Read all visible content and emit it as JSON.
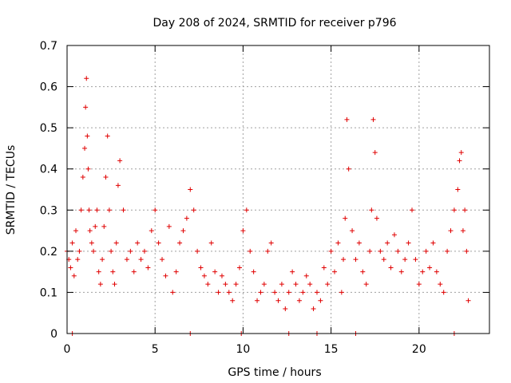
{
  "chart_data": {
    "type": "scatter",
    "title": "Day 208 of 2024, SRMTID for receiver p796",
    "xlabel": "GPS time / hours",
    "ylabel": "SRMTID / TECUs",
    "xlim": [
      0,
      24
    ],
    "ylim": [
      0,
      0.7
    ],
    "x_ticks": [
      0,
      5,
      10,
      15,
      20
    ],
    "x_tick_labels": [
      "0",
      "5",
      "10",
      "15",
      "20"
    ],
    "y_ticks": [
      0,
      0.1,
      0.2,
      0.3,
      0.4,
      0.5,
      0.6,
      0.7
    ],
    "y_tick_labels": [
      "0",
      "0.1",
      "0.2",
      "0.3",
      "0.4",
      "0.5",
      "0.6",
      "0.7"
    ],
    "grid": true,
    "marker": "plus",
    "series": [
      {
        "name": "SRMTID",
        "color": "#e00000",
        "x": [
          0.0,
          0.1,
          0.2,
          0.3,
          0.4,
          0.5,
          0.6,
          0.7,
          0.8,
          0.9,
          1.0,
          1.05,
          1.1,
          1.15,
          1.2,
          1.25,
          1.3,
          1.4,
          1.5,
          1.6,
          1.7,
          1.8,
          1.9,
          2.0,
          2.1,
          2.2,
          2.3,
          2.4,
          2.5,
          2.6,
          2.7,
          2.8,
          2.9,
          3.0,
          3.2,
          3.4,
          3.6,
          3.8,
          4.0,
          4.2,
          4.4,
          4.6,
          4.8,
          5.0,
          5.2,
          5.4,
          5.6,
          5.8,
          6.0,
          6.2,
          6.4,
          6.6,
          6.8,
          7.0,
          7.2,
          7.4,
          7.6,
          7.8,
          8.0,
          8.2,
          8.4,
          8.6,
          8.8,
          9.0,
          9.2,
          9.4,
          9.6,
          9.8,
          10.0,
          10.2,
          10.4,
          10.6,
          10.8,
          11.0,
          11.2,
          11.4,
          11.6,
          11.8,
          12.0,
          12.2,
          12.4,
          12.6,
          12.8,
          13.0,
          13.2,
          13.4,
          13.6,
          13.8,
          14.0,
          14.2,
          14.4,
          14.6,
          14.8,
          15.0,
          15.2,
          15.4,
          15.6,
          15.7,
          15.8,
          15.9,
          16.0,
          16.2,
          16.4,
          16.6,
          16.8,
          17.0,
          17.2,
          17.3,
          17.4,
          17.5,
          17.6,
          17.8,
          18.0,
          18.2,
          18.4,
          18.6,
          18.8,
          19.0,
          19.2,
          19.4,
          19.6,
          19.8,
          20.0,
          20.2,
          20.4,
          20.6,
          20.8,
          21.0,
          21.2,
          21.4,
          21.6,
          21.8,
          22.0,
          22.2,
          22.3,
          22.4,
          22.5,
          22.6,
          22.7,
          22.8
        ],
        "y": [
          0.2,
          0.18,
          0.16,
          0.22,
          0.14,
          0.25,
          0.18,
          0.2,
          0.3,
          0.38,
          0.45,
          0.55,
          0.62,
          0.48,
          0.4,
          0.3,
          0.25,
          0.22,
          0.2,
          0.26,
          0.3,
          0.15,
          0.12,
          0.18,
          0.26,
          0.38,
          0.48,
          0.3,
          0.2,
          0.15,
          0.12,
          0.22,
          0.36,
          0.42,
          0.3,
          0.18,
          0.2,
          0.15,
          0.22,
          0.18,
          0.2,
          0.16,
          0.25,
          0.3,
          0.22,
          0.18,
          0.14,
          0.26,
          0.1,
          0.15,
          0.22,
          0.25,
          0.28,
          0.35,
          0.3,
          0.2,
          0.16,
          0.14,
          0.12,
          0.22,
          0.15,
          0.1,
          0.14,
          0.12,
          0.1,
          0.08,
          0.12,
          0.16,
          0.25,
          0.3,
          0.2,
          0.15,
          0.08,
          0.1,
          0.12,
          0.2,
          0.22,
          0.1,
          0.08,
          0.12,
          0.06,
          0.1,
          0.15,
          0.12,
          0.08,
          0.1,
          0.14,
          0.12,
          0.06,
          0.1,
          0.08,
          0.16,
          0.12,
          0.2,
          0.15,
          0.22,
          0.1,
          0.18,
          0.28,
          0.52,
          0.4,
          0.25,
          0.18,
          0.22,
          0.15,
          0.12,
          0.2,
          0.3,
          0.52,
          0.44,
          0.28,
          0.2,
          0.18,
          0.22,
          0.16,
          0.24,
          0.2,
          0.15,
          0.18,
          0.22,
          0.3,
          0.18,
          0.12,
          0.15,
          0.2,
          0.16,
          0.22,
          0.15,
          0.12,
          0.1,
          0.2,
          0.25,
          0.3,
          0.35,
          0.42,
          0.44,
          0.25,
          0.3,
          0.2,
          0.08
        ],
        "bottom_markers_x": [
          0.3,
          7.0,
          9.9,
          12.6,
          14.2,
          16.4,
          22.0
        ]
      }
    ]
  }
}
